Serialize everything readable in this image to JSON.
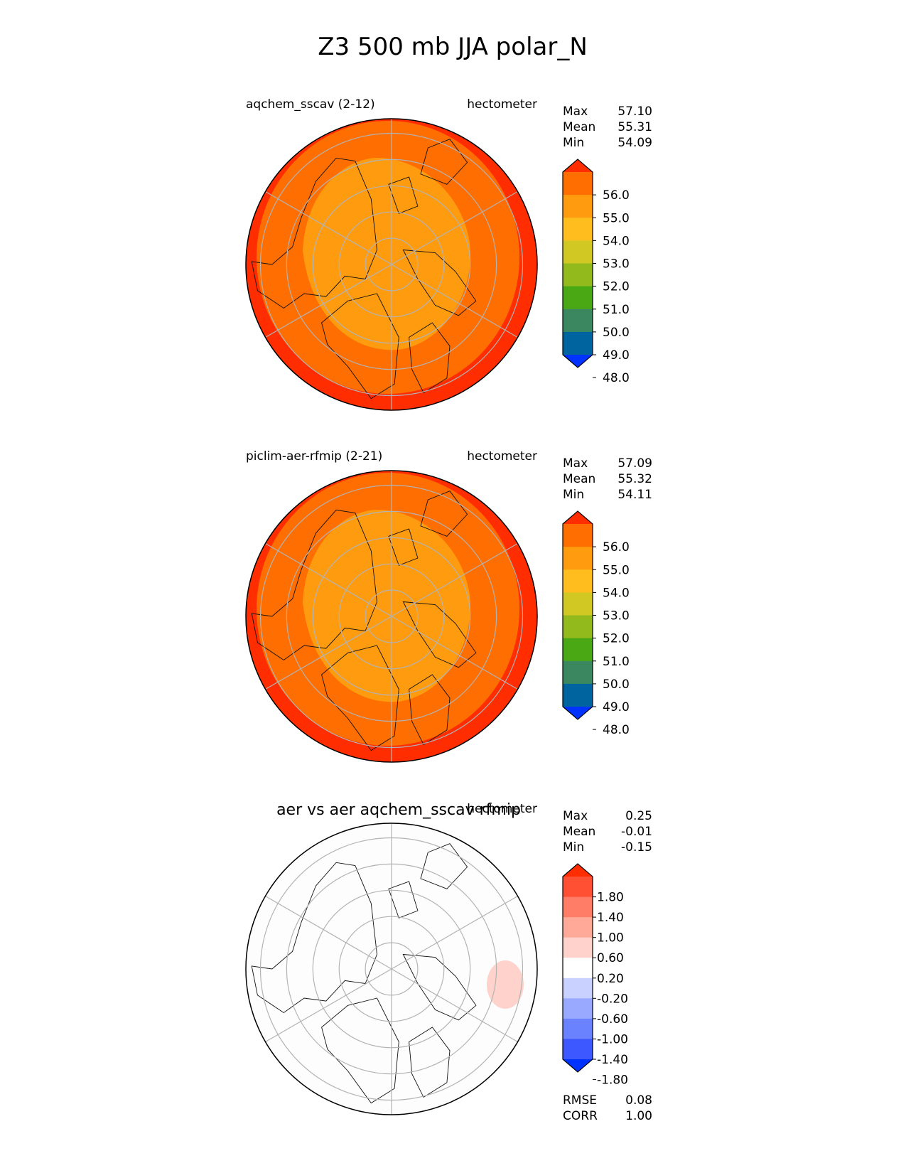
{
  "figure": {
    "title": "Z3 500 mb JJA polar_N"
  },
  "colors": {
    "field_levels": [
      "#0033ff",
      "#00649e",
      "#3a8760",
      "#4aa815",
      "#93ba1c",
      "#d2c824",
      "#ffbe1e",
      "#ff9b0f",
      "#ff6e00",
      "#ff2d00"
    ],
    "diff_levels": [
      "#0033ff",
      "#3e58ff",
      "#6b82ff",
      "#98a9ff",
      "#c9d2ff",
      "#ffffff",
      "#ffd3cb",
      "#ffa998",
      "#ff7d66",
      "#ff5034",
      "#ff2d00"
    ],
    "land_outline": "#111111",
    "gridline": "#b3b3b3"
  },
  "chart_data": [
    {
      "type": "heatmap",
      "projection": "north-polar-stereographic",
      "title_left": "aqchem_sscav (2-12)",
      "title_right": "hectometer",
      "stats": [
        {
          "label": "Max",
          "value": "57.10"
        },
        {
          "label": "Mean",
          "value": "55.31"
        },
        {
          "label": "Min",
          "value": "54.09"
        }
      ],
      "colorbar": {
        "ticks": [
          "56.0",
          "55.0",
          "54.0",
          "53.0",
          "52.0",
          "51.0",
          "50.0",
          "49.0",
          "48.0"
        ],
        "levels": [
          48,
          49,
          50,
          51,
          52,
          53,
          54,
          55,
          56
        ],
        "extend": "both"
      },
      "field_bands": [
        {
          "label": "> 56.0",
          "level_index": 9
        },
        {
          "label": "55.0-56.0",
          "level_index": 8
        },
        {
          "label": "54.0-55.0",
          "level_index": 7
        }
      ]
    },
    {
      "type": "heatmap",
      "projection": "north-polar-stereographic",
      "title_left": "piclim-aer-rfmip (2-21)",
      "title_right": "hectometer",
      "stats": [
        {
          "label": "Max",
          "value": "57.09"
        },
        {
          "label": "Mean",
          "value": "55.32"
        },
        {
          "label": "Min",
          "value": "54.11"
        }
      ],
      "colorbar": {
        "ticks": [
          "56.0",
          "55.0",
          "54.0",
          "53.0",
          "52.0",
          "51.0",
          "50.0",
          "49.0",
          "48.0"
        ],
        "levels": [
          48,
          49,
          50,
          51,
          52,
          53,
          54,
          55,
          56
        ],
        "extend": "both"
      },
      "field_bands": [
        {
          "label": "> 56.0",
          "level_index": 9
        },
        {
          "label": "55.0-56.0",
          "level_index": 8
        },
        {
          "label": "54.0-55.0",
          "level_index": 7
        }
      ]
    },
    {
      "type": "heatmap",
      "projection": "north-polar-stereographic",
      "title_center": "aer vs aer aqchem_sscav rfmip",
      "title_right": "hectometer",
      "stats": [
        {
          "label": "Max",
          "value": "0.25"
        },
        {
          "label": "Mean",
          "value": "-0.01"
        },
        {
          "label": "Min",
          "value": "-0.15"
        }
      ],
      "colorbar": {
        "ticks": [
          "1.80",
          "1.40",
          "1.00",
          "0.60",
          "0.20",
          "-0.20",
          "-0.60",
          "-1.00",
          "-1.40",
          "-1.80"
        ],
        "levels": [
          -1.8,
          -1.4,
          -1.0,
          -0.6,
          -0.2,
          0.2,
          0.6,
          1.0,
          1.4,
          1.8
        ],
        "extend": "both"
      },
      "metrics": [
        {
          "label": "RMSE",
          "value": "0.08"
        },
        {
          "label": "CORR",
          "value": "1.00"
        }
      ]
    }
  ]
}
